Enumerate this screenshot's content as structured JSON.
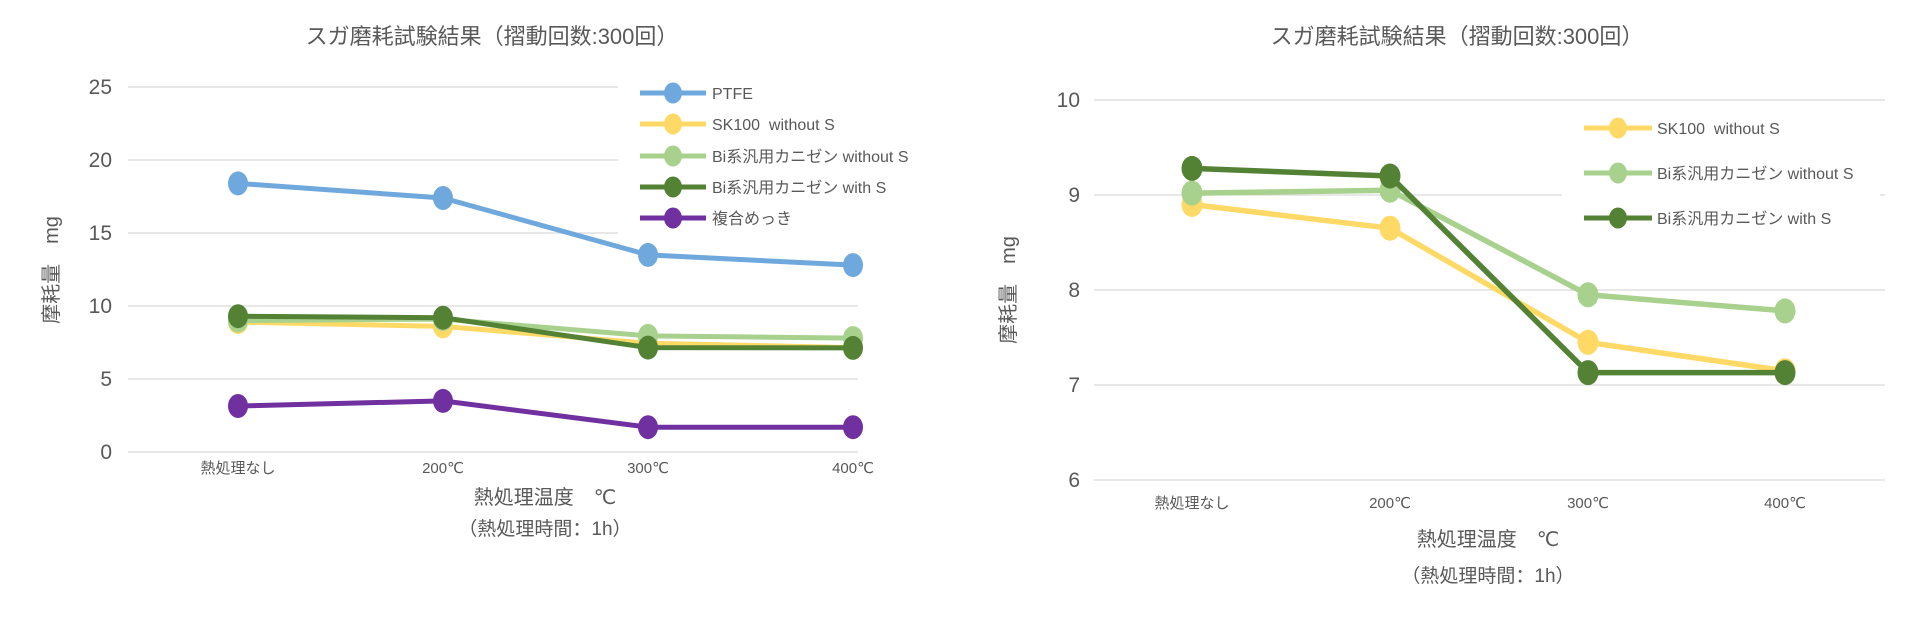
{
  "page": {
    "background": "#ffffff",
    "text_color": "#595959",
    "gridline_color": "#d9d9d9"
  },
  "chart_data": [
    {
      "type": "line",
      "title": "スガ磨耗試験結果（摺動回数:300回）",
      "ylabel": "摩耗量　mg",
      "xlabel": "熱処理温度　℃",
      "x_annotation": "（熱処理時間：1h）",
      "categories": [
        "熱処理なし",
        "200℃",
        "300℃",
        "400℃"
      ],
      "yticks": [
        "0",
        "5",
        "10",
        "15",
        "20",
        "25"
      ],
      "ylim": [
        0,
        25
      ],
      "grid": true,
      "legend_position": "top-right-inside",
      "series": [
        {
          "name": "PTFE",
          "color": "#6FA8DC",
          "values": [
            18.4,
            17.4,
            13.5,
            12.8
          ]
        },
        {
          "name": "SK100  without S",
          "color": "#FFD966",
          "values": [
            8.9,
            8.6,
            7.45,
            7.15
          ]
        },
        {
          "name": "Bi系汎用カニゼン without S",
          "color": "#A9D18E",
          "values": [
            9.0,
            9.1,
            7.95,
            7.8
          ]
        },
        {
          "name": "Bi系汎用カニゼン with S",
          "color": "#548235",
          "values": [
            9.3,
            9.2,
            7.15,
            7.13
          ]
        },
        {
          "name": "複合めっき",
          "color": "#7030A0",
          "values": [
            3.15,
            3.5,
            1.7,
            1.7
          ]
        }
      ]
    },
    {
      "type": "line",
      "title": "スガ磨耗試験結果（摺動回数:300回）",
      "ylabel": "摩耗量　mg",
      "xlabel": "熱処理温度　℃",
      "x_annotation": "（熱処理時間：1h）",
      "categories": [
        "熱処理なし",
        "200℃",
        "300℃",
        "400℃"
      ],
      "yticks": [
        "6",
        "7",
        "8",
        "9",
        "10"
      ],
      "ylim": [
        6,
        10
      ],
      "grid": true,
      "legend_position": "top-right-inside",
      "series": [
        {
          "name": "SK100  without S",
          "color": "#FFD966",
          "values": [
            8.9,
            8.65,
            7.45,
            7.15
          ]
        },
        {
          "name": "Bi系汎用カニゼン without S",
          "color": "#A9D18E",
          "values": [
            9.02,
            9.05,
            7.95,
            7.78
          ]
        },
        {
          "name": "Bi系汎用カニゼン with S",
          "color": "#548235",
          "values": [
            9.28,
            9.2,
            7.13,
            7.13
          ]
        }
      ]
    }
  ]
}
